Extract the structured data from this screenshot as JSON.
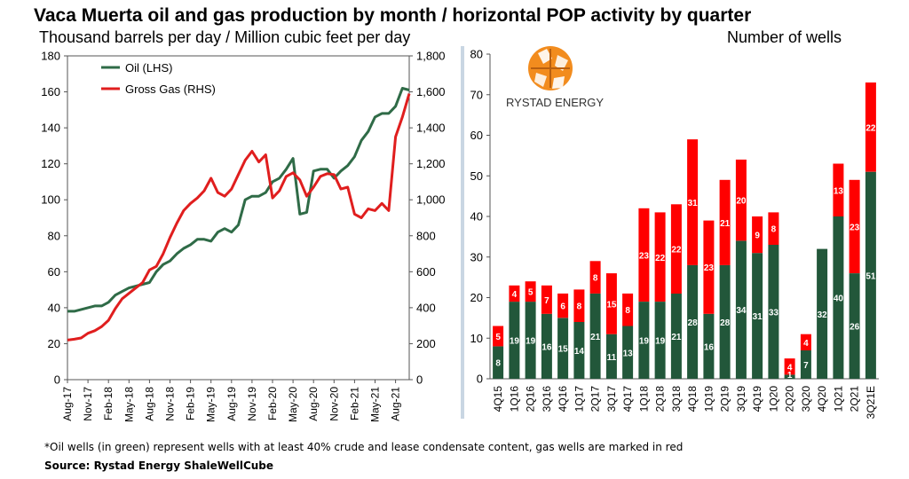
{
  "title": "Vaca Muerta oil and gas production by month / horizontal POP activity by quarter",
  "subtitle_left": "Thousand barrels per day / Million cubic feet per day",
  "subtitle_right": "Number of wells",
  "logo_text": "RYSTAD ENERGY",
  "footnote": "*Oil wells (in green) represent wells with at least 40% crude and lease condensate content, gas wells are marked in red",
  "source": "Source: Rystad Energy ShaleWellCube",
  "colors": {
    "oil": "#2f6b47",
    "gas": "#e01e1e",
    "oil_bar": "#22573a",
    "gas_bar": "#ff0000"
  },
  "chart_data": [
    {
      "type": "line",
      "y_left": {
        "min": 0,
        "max": 180,
        "ticks": [
          "0",
          "20",
          "40",
          "60",
          "80",
          "100",
          "120",
          "140",
          "160",
          "180"
        ]
      },
      "y_right": {
        "min": 0,
        "max": 1800,
        "ticks": [
          "0",
          "200",
          "400",
          "600",
          "800",
          "1,000",
          "1,200",
          "1,400",
          "1,600",
          "1,800"
        ]
      },
      "x_tick_labels": [
        "Aug-17",
        "Nov-17",
        "Feb-18",
        "May-18",
        "Aug-18",
        "Nov-18",
        "Feb-19",
        "May-19",
        "Aug-19",
        "Nov-19",
        "Feb-20",
        "May-20",
        "Aug-20",
        "Nov-20",
        "Feb-21",
        "May-21",
        "Aug-21"
      ],
      "legend_position": "top-left",
      "series": [
        {
          "name": "Oil (LHS)",
          "axis": "left",
          "values": [
            38,
            38,
            39,
            40,
            41,
            41,
            43,
            47,
            49,
            51,
            52,
            53,
            54,
            60,
            64,
            66,
            70,
            73,
            75,
            78,
            78,
            77,
            82,
            84,
            82,
            86,
            100,
            102,
            102,
            104,
            110,
            112,
            117,
            123,
            92,
            93,
            116,
            117,
            117,
            112,
            116,
            119,
            124,
            133,
            138,
            146,
            148,
            148,
            152,
            162,
            161
          ]
        },
        {
          "name": "Gross Gas (RHS)",
          "axis": "right",
          "values": [
            220,
            225,
            232,
            258,
            272,
            295,
            330,
            395,
            450,
            480,
            510,
            540,
            610,
            630,
            700,
            790,
            870,
            940,
            980,
            1010,
            1050,
            1120,
            1040,
            1020,
            1060,
            1140,
            1220,
            1270,
            1210,
            1250,
            1010,
            1050,
            1130,
            1150,
            1110,
            1020,
            1070,
            1130,
            1145,
            1140,
            1060,
            1070,
            920,
            900,
            950,
            940,
            980,
            940,
            1350,
            1460,
            1590
          ]
        }
      ]
    },
    {
      "type": "bar",
      "stacked": true,
      "ylim": [
        0,
        80
      ],
      "y_ticks": [
        "0",
        "10",
        "20",
        "30",
        "40",
        "50",
        "60",
        "70",
        "80"
      ],
      "categories": [
        "4Q15",
        "1Q16",
        "2Q16",
        "3Q16",
        "4Q16",
        "1Q17",
        "2Q17",
        "3Q17",
        "4Q17",
        "1Q18",
        "2Q18",
        "3Q18",
        "4Q18",
        "1Q19",
        "2Q19",
        "3Q19",
        "4Q19",
        "1Q20",
        "2Q20",
        "3Q20",
        "4Q20",
        "1Q21",
        "2Q21",
        "3Q21E"
      ],
      "series": [
        {
          "name": "Oil wells",
          "values": [
            8,
            19,
            19,
            16,
            15,
            14,
            21,
            11,
            13,
            19,
            19,
            21,
            28,
            16,
            28,
            34,
            31,
            33,
            1,
            7,
            32,
            40,
            26,
            51
          ]
        },
        {
          "name": "Gas wells",
          "values": [
            5,
            4,
            5,
            7,
            6,
            8,
            8,
            15,
            8,
            23,
            22,
            22,
            31,
            23,
            21,
            20,
            9,
            8,
            4,
            4,
            0,
            13,
            23,
            22
          ]
        }
      ]
    }
  ]
}
